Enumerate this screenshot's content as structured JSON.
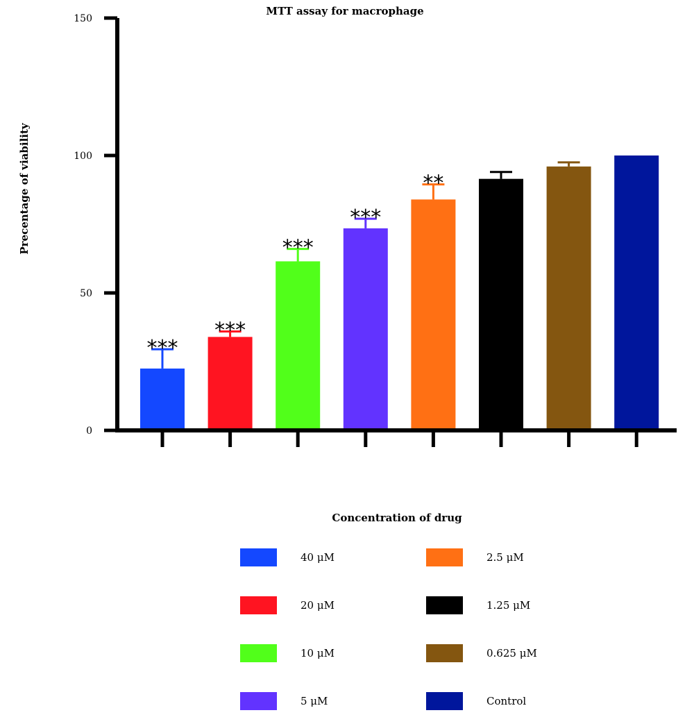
{
  "chart_data": {
    "type": "bar",
    "title": "MTT assay for macrophage",
    "ylabel": "Precentage of viability",
    "xlabel": "Concentration of drug",
    "ylim": [
      0,
      150
    ],
    "yticks": [
      0,
      50,
      100,
      150
    ],
    "grid": false,
    "legend_position": "bottom",
    "categories": [
      "40 μM",
      "20 μM",
      "10 μM",
      "5 μM",
      "2.5 μM",
      "1.25 μM",
      "0.625 μM",
      "Control"
    ],
    "values": [
      22.5,
      34,
      61.5,
      73.5,
      84,
      91.5,
      96,
      100
    ],
    "errors": [
      7,
      2,
      4.5,
      3.5,
      5.5,
      2.5,
      1.5,
      0
    ],
    "colors": [
      "#1448ff",
      "#ff1421",
      "#51ff1a",
      "#6233ff",
      "#ff7014",
      "#000000",
      "#845610",
      "#00169c"
    ],
    "significance": [
      "***",
      "***",
      "***",
      "***",
      "**",
      "",
      "",
      ""
    ]
  }
}
